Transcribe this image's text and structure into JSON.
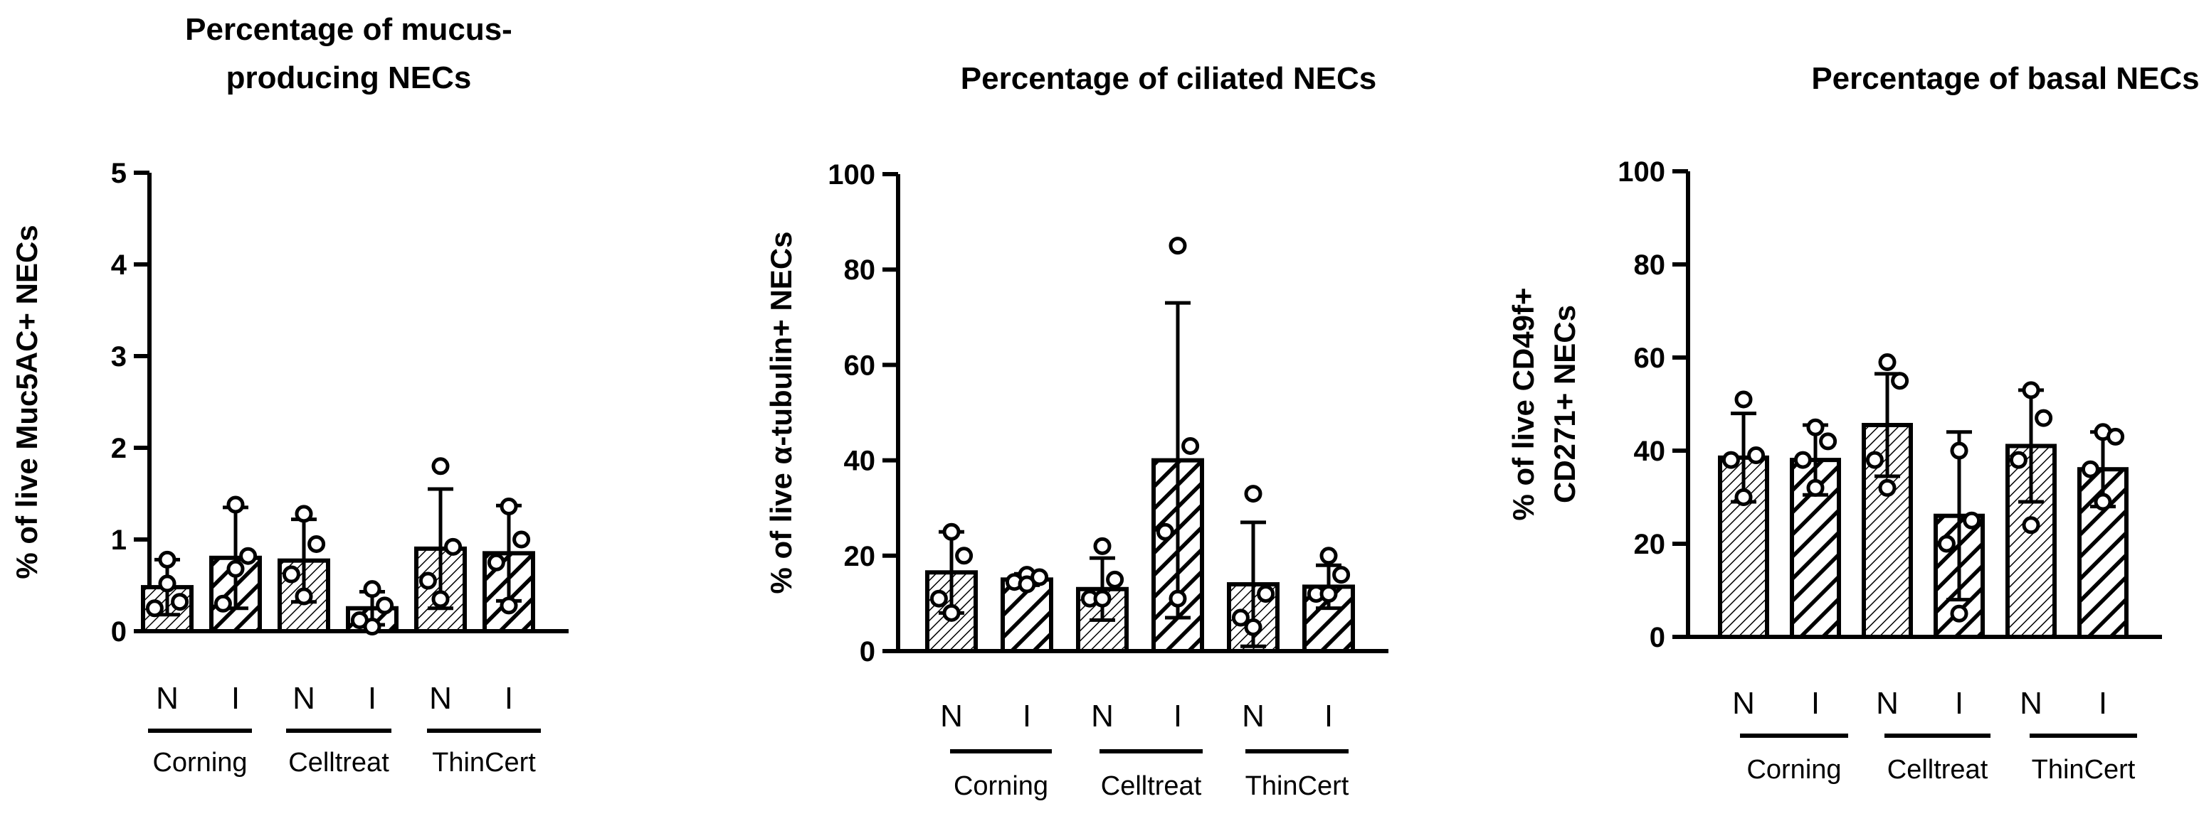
{
  "chart_data": [
    {
      "type": "bar",
      "title_lines": [
        "Percentage of mucus-",
        "producing NECs"
      ],
      "ylabel_lines": [
        "% of live Muc5AC+ NECs"
      ],
      "ylim": [
        0,
        5
      ],
      "yticks": [
        "0",
        "1",
        "2",
        "3",
        "4",
        "5"
      ],
      "categories": [
        "N",
        "I",
        "N",
        "I",
        "N",
        "I"
      ],
      "groups": [
        "Corning",
        "Celltreat",
        "ThinCert"
      ],
      "bars": [
        {
          "mean": 0.48,
          "sd": 0.3,
          "points": [
            0.78,
            0.32,
            0.25,
            0.52
          ]
        },
        {
          "mean": 0.8,
          "sd": 0.55,
          "points": [
            1.38,
            0.82,
            0.3,
            0.68
          ]
        },
        {
          "mean": 0.77,
          "sd": 0.45,
          "points": [
            1.28,
            0.95,
            0.62,
            0.38
          ]
        },
        {
          "mean": 0.25,
          "sd": 0.18,
          "points": [
            0.46,
            0.28,
            0.12,
            0.05
          ]
        },
        {
          "mean": 0.9,
          "sd": 0.65,
          "points": [
            1.8,
            0.92,
            0.55,
            0.35
          ]
        },
        {
          "mean": 0.85,
          "sd": 0.52,
          "points": [
            1.36,
            1.0,
            0.75,
            0.28
          ]
        }
      ]
    },
    {
      "type": "bar",
      "title_lines": [
        "Percentage of ciliated NECs"
      ],
      "ylabel_lines": [
        "% of live α-tubulin+ NECs"
      ],
      "ylim": [
        0,
        100
      ],
      "yticks": [
        "0",
        "20",
        "40",
        "60",
        "80",
        "100"
      ],
      "categories": [
        "N",
        "I",
        "N",
        "I",
        "N",
        "I"
      ],
      "groups": [
        "Corning",
        "Celltreat",
        "ThinCert"
      ],
      "bars": [
        {
          "mean": 16.5,
          "sd": 8.5,
          "points": [
            25,
            20,
            11,
            8
          ]
        },
        {
          "mean": 15,
          "sd": 1.2,
          "points": [
            16,
            15.5,
            14.5,
            14
          ]
        },
        {
          "mean": 13,
          "sd": 6.5,
          "points": [
            22,
            15,
            11,
            11
          ]
        },
        {
          "mean": 40,
          "sd": 33,
          "points": [
            85,
            43,
            25,
            11
          ]
        },
        {
          "mean": 14,
          "sd": 13,
          "points": [
            33,
            12,
            7,
            5
          ]
        },
        {
          "mean": 13.5,
          "sd": 4.5,
          "points": [
            20,
            16,
            12,
            12
          ]
        }
      ]
    },
    {
      "type": "bar",
      "title_lines": [
        "Percentage of basal NECs"
      ],
      "ylabel_lines": [
        "% of live CD49f+",
        "CD271+ NECs"
      ],
      "ylim": [
        0,
        100
      ],
      "yticks": [
        "0",
        "20",
        "40",
        "60",
        "80",
        "100"
      ],
      "categories": [
        "N",
        "I",
        "N",
        "I",
        "N",
        "I"
      ],
      "groups": [
        "Corning",
        "Celltreat",
        "ThinCert"
      ],
      "bars": [
        {
          "mean": 38.5,
          "sd": 9.5,
          "points": [
            51,
            39,
            38,
            30
          ]
        },
        {
          "mean": 38,
          "sd": 7.5,
          "points": [
            45,
            42,
            38,
            32
          ]
        },
        {
          "mean": 45.5,
          "sd": 11,
          "points": [
            59,
            55,
            38,
            32
          ]
        },
        {
          "mean": 26,
          "sd": 18,
          "points": [
            40,
            25,
            20,
            5
          ]
        },
        {
          "mean": 41,
          "sd": 12,
          "points": [
            53,
            47,
            38,
            24
          ]
        },
        {
          "mean": 36,
          "sd": 8,
          "points": [
            44,
            43,
            36,
            29
          ]
        }
      ]
    }
  ]
}
